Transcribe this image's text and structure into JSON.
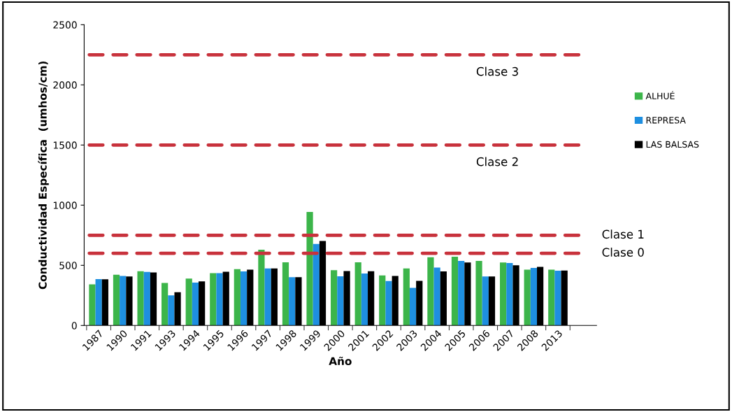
{
  "chart_data": {
    "type": "bar",
    "xlabel": "Año",
    "ylabel": "Conductividad Específica  (umhos/cm)",
    "categories": [
      "1987",
      "1990",
      "1991",
      "1993",
      "1994",
      "1995",
      "1996",
      "1997",
      "1998",
      "1999",
      "2000",
      "2001",
      "2002",
      "2003",
      "2004",
      "2005",
      "2006",
      "2007",
      "2008",
      "2013"
    ],
    "series": [
      {
        "name": "ALHUÉ",
        "color": "#3cb54a",
        "values": [
          342,
          422,
          451,
          353,
          390,
          435,
          468,
          630,
          525,
          944,
          460,
          525,
          416,
          474,
          567,
          571,
          537,
          523,
          464,
          464
        ]
      },
      {
        "name": "REPRESA",
        "color": "#1e8fe0",
        "values": [
          386,
          411,
          445,
          250,
          357,
          435,
          449,
          474,
          401,
          678,
          409,
          432,
          369,
          313,
          481,
          537,
          407,
          520,
          478,
          455
        ]
      },
      {
        "name": "LAS BALSAS",
        "color": "#000000",
        "values": [
          384,
          407,
          441,
          277,
          367,
          447,
          464,
          474,
          401,
          703,
          453,
          451,
          411,
          371,
          449,
          523,
          407,
          500,
          487,
          457
        ]
      }
    ],
    "ylim": [
      0,
      2500
    ],
    "yticks": [
      0,
      500,
      1000,
      1500,
      2000,
      2500
    ],
    "legend": "right",
    "grid": false,
    "ref_lines": [
      {
        "axis": "y",
        "value": 2250,
        "label": "Clase 3",
        "color": "#c8323c",
        "line_style": "dashed"
      },
      {
        "axis": "y",
        "value": 1500,
        "label": "Clase 2",
        "color": "#c8323c",
        "line_style": "dashed"
      },
      {
        "axis": "y",
        "value": 750,
        "label": "Clase 1",
        "color": "#c8323c",
        "line_style": "dashed"
      },
      {
        "axis": "y",
        "value": 600,
        "label": "Clase 0",
        "color": "#c8323c",
        "line_style": "dashed"
      }
    ]
  }
}
